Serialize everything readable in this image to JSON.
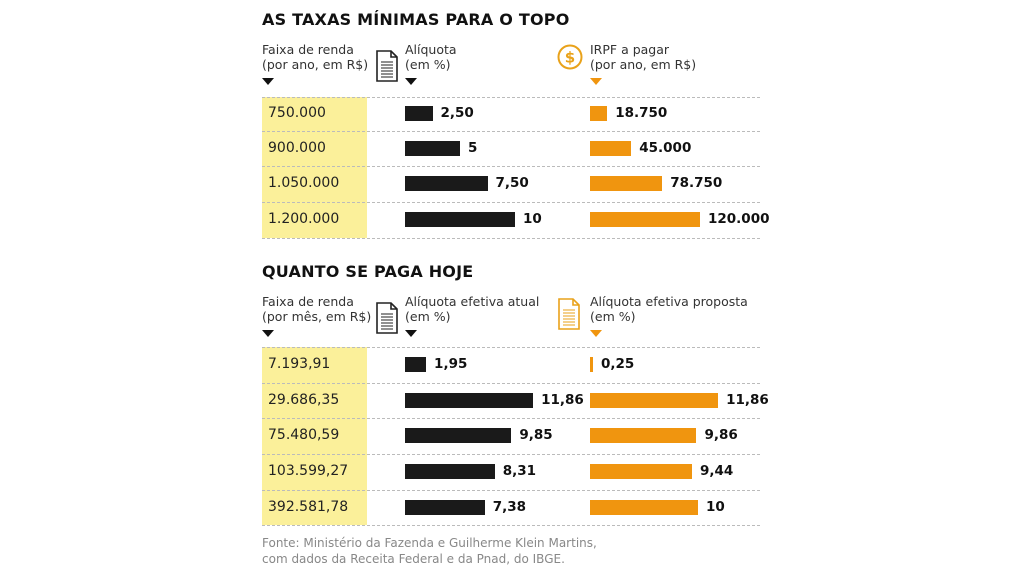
{
  "chart_data": [
    {
      "type": "table",
      "title": "AS TAXAS MÍNIMAS PARA O TOPO",
      "headers": {
        "col1": [
          "Faixa de renda",
          "(por ano, em R$)"
        ],
        "col2": [
          "Alíquota",
          "(em %)"
        ],
        "col3": [
          "IRPF a pagar",
          "(por ano, em R$)"
        ]
      },
      "categories": [
        "750.000",
        "900.000",
        "1.050.000",
        "1.200.000"
      ],
      "series": [
        {
          "name": "Alíquota (em %)",
          "color": "#1a1a1a",
          "values": [
            2.5,
            5,
            7.5,
            10
          ],
          "labels": [
            "2,50",
            "5",
            "7,50",
            "10"
          ]
        },
        {
          "name": "IRPF a pagar (por ano, em R$)",
          "color": "#f0950f",
          "values": [
            18750,
            45000,
            78750,
            120000
          ],
          "labels": [
            "18.750",
            "45.000",
            "78.750",
            "120.000"
          ]
        }
      ]
    },
    {
      "type": "table",
      "title": "QUANTO SE PAGA HOJE",
      "headers": {
        "col1": [
          "Faixa de renda",
          "(por mês, em R$)"
        ],
        "col2": [
          "Alíquota efetiva atual",
          "(em %)"
        ],
        "col3": [
          "Alíquota efetiva proposta",
          "(em %)"
        ]
      },
      "categories": [
        "7.193,91",
        "29.686,35",
        "75.480,59",
        "103.599,27",
        "392.581,78"
      ],
      "series": [
        {
          "name": "Alíquota efetiva atual (em %)",
          "color": "#1a1a1a",
          "values": [
            1.95,
            11.86,
            9.85,
            8.31,
            7.38
          ],
          "labels": [
            "1,95",
            "11,86",
            "9,85",
            "8,31",
            "7,38"
          ]
        },
        {
          "name": "Alíquota efetiva proposta (em %)",
          "color": "#f0950f",
          "values": [
            0.25,
            11.86,
            9.86,
            9.44,
            10
          ],
          "labels": [
            "0,25",
            "11,86",
            "9,86",
            "9,44",
            "10"
          ]
        }
      ]
    }
  ],
  "source": [
    "Fonte: Ministério da Fazenda e Guilherme Klein Martins,",
    "com dados da Receita Federal e da Pnad, do IBGE."
  ],
  "icons": {
    "doc": "document-icon",
    "dollar": "dollar-coin-icon",
    "doc_orange": "document-orange-icon"
  }
}
